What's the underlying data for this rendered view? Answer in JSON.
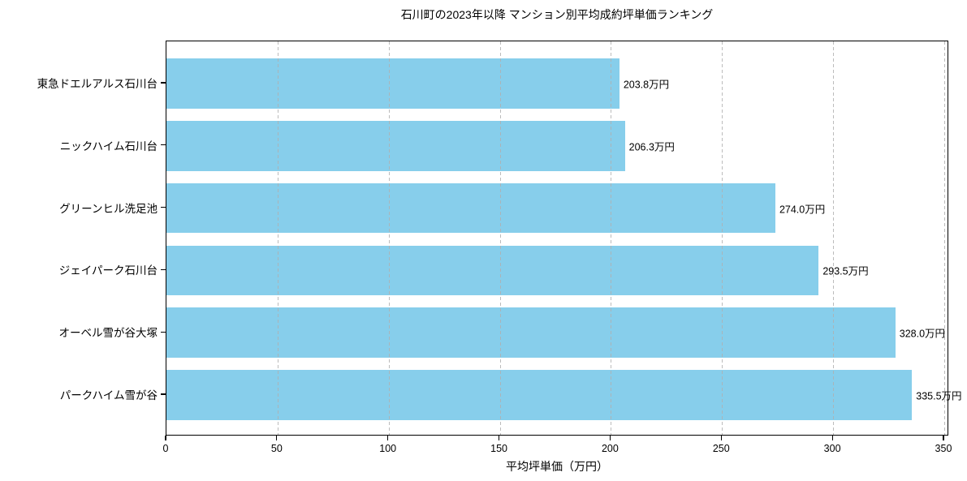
{
  "chart_data": {
    "type": "bar",
    "orientation": "horizontal",
    "title": "石川町の2023年以降 マンション別平均成約坪単価ランキング",
    "xlabel": "平均坪単価（万円）",
    "categories": [
      "東急ドエルアルス石川台",
      "ニックハイム石川台",
      "グリーンヒル洗足池",
      "ジェイパーク石川台",
      "オーベル雪が谷大塚",
      "パークハイム雪が谷"
    ],
    "values": [
      203.8,
      206.3,
      274.0,
      293.5,
      328.0,
      335.5
    ],
    "value_labels": [
      "203.8万円",
      "206.3万円",
      "274.0万円",
      "293.5万円",
      "328.0万円",
      "335.5万円"
    ],
    "xticks": [
      0,
      50,
      100,
      150,
      200,
      250,
      300,
      350
    ],
    "xlim": [
      0,
      352.2
    ],
    "grid": "vertical-dashed",
    "grid_color": "#b0b0b0",
    "bar_color": "#87CEEB",
    "text_color": "#000000",
    "background_color": "#ffffff"
  }
}
